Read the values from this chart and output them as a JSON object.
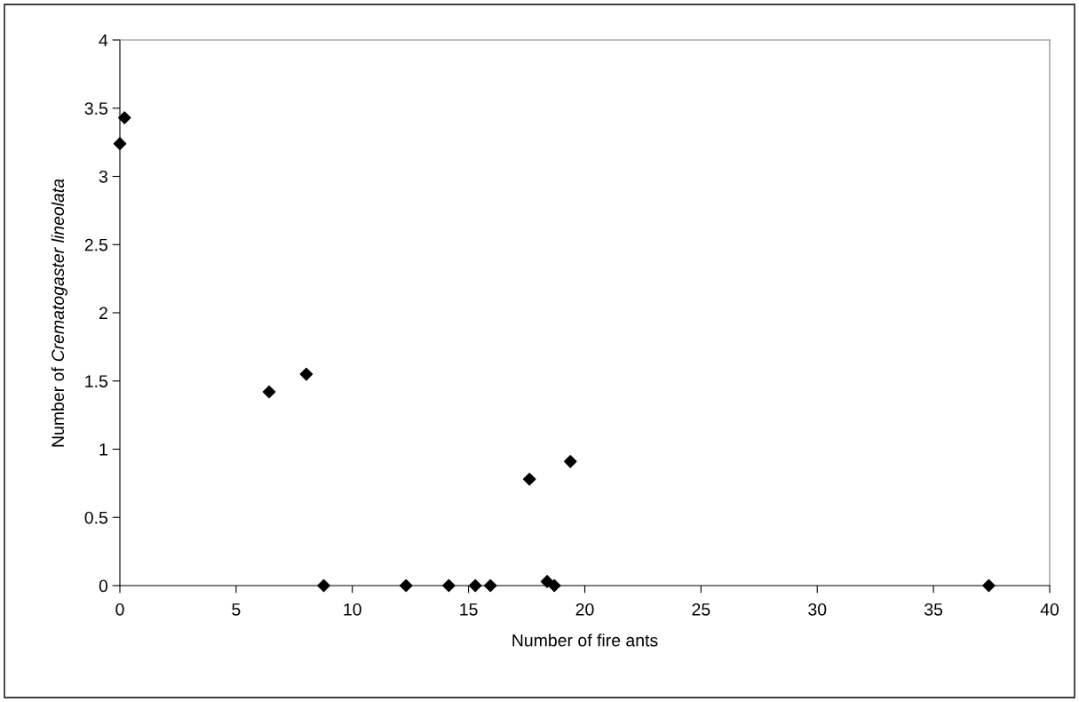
{
  "chart_data": {
    "type": "scatter",
    "xlabel": "Number of fire ants",
    "ylabel": "Number of Crematogaster lineolata",
    "x": [
      0,
      0.2,
      6.42,
      8.02,
      8.77,
      12.31,
      14.15,
      15.29,
      15.94,
      17.62,
      18.38,
      18.69,
      19.38,
      37.38
    ],
    "series": [
      {
        "color": "#000000",
        "values": [
          3.24,
          3.43,
          1.42,
          1.55,
          0,
          0,
          0,
          0,
          0,
          0.78,
          0.03,
          0,
          0.91,
          0
        ]
      }
    ],
    "xlim": [
      0,
      40
    ],
    "xticks": [
      0,
      5,
      10,
      15,
      20,
      25,
      30,
      35,
      40
    ],
    "ylim": [
      0,
      4
    ],
    "yticks": [
      0,
      0.5,
      1,
      1.5,
      2,
      2.5,
      3,
      3.5,
      4
    ],
    "marker": "diamond",
    "grid": false,
    "legend": false
  }
}
